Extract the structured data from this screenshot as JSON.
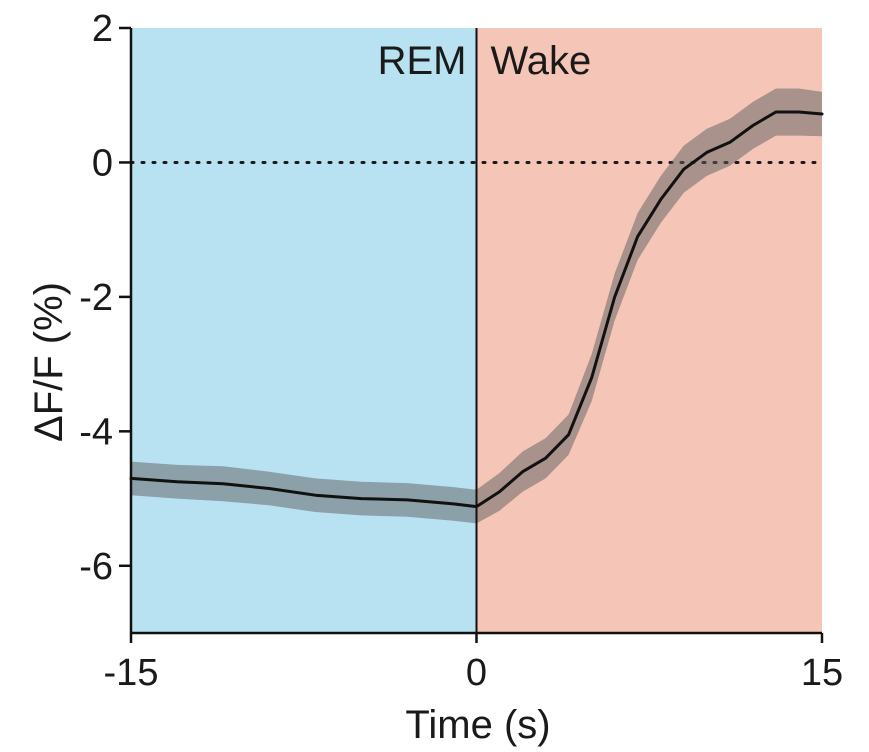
{
  "chart_data": {
    "type": "line",
    "title": "",
    "xlabel": "Time (s)",
    "ylabel": "ΔF/F (%)",
    "xlim": [
      -15,
      15
    ],
    "ylim": [
      -7,
      2
    ],
    "x_ticks": [
      -15,
      0,
      15
    ],
    "x_tick_labels": [
      "-15",
      "0",
      "15"
    ],
    "y_ticks": [
      2,
      0,
      -2,
      -4,
      -6
    ],
    "y_tick_labels": [
      "2",
      "0",
      "-2",
      "-4",
      "-6"
    ],
    "grid": false,
    "legend": "none",
    "reference_line": {
      "y": 0,
      "style": "dotted"
    },
    "regions": [
      {
        "label": "REM",
        "x_start": -15,
        "x_end": 0,
        "color": "#b8e2f2"
      },
      {
        "label": "Wake",
        "x_start": 0,
        "x_end": 15,
        "color": "#f5c6b8"
      }
    ],
    "onset_line": {
      "x": 0
    },
    "series": [
      {
        "mean_color": "#111111",
        "band_color": "#5e5e5e",
        "band_opacity": 0.5,
        "x": [
          -15,
          -13,
          -11,
          -9,
          -7,
          -5,
          -3,
          -1,
          0,
          1,
          2,
          3,
          4,
          5,
          6,
          7,
          8,
          9,
          10,
          11,
          12,
          13,
          14,
          15
        ],
        "mean": [
          -4.7,
          -4.75,
          -4.78,
          -4.85,
          -4.95,
          -5.0,
          -5.02,
          -5.08,
          -5.12,
          -4.9,
          -4.6,
          -4.4,
          -4.05,
          -3.2,
          -2.0,
          -1.1,
          -0.55,
          -0.1,
          0.15,
          0.3,
          0.55,
          0.75,
          0.75,
          0.72
        ],
        "upper": [
          -4.45,
          -4.5,
          -4.52,
          -4.6,
          -4.7,
          -4.75,
          -4.77,
          -4.83,
          -4.87,
          -4.62,
          -4.3,
          -4.1,
          -3.75,
          -2.85,
          -1.65,
          -0.75,
          -0.2,
          0.25,
          0.5,
          0.65,
          0.9,
          1.1,
          1.1,
          1.05
        ],
        "lower": [
          -4.95,
          -5.0,
          -5.04,
          -5.1,
          -5.2,
          -5.25,
          -5.27,
          -5.33,
          -5.37,
          -5.18,
          -4.9,
          -4.7,
          -4.35,
          -3.55,
          -2.35,
          -1.45,
          -0.9,
          -0.45,
          -0.2,
          -0.05,
          0.2,
          0.4,
          0.4,
          0.39
        ]
      }
    ]
  }
}
